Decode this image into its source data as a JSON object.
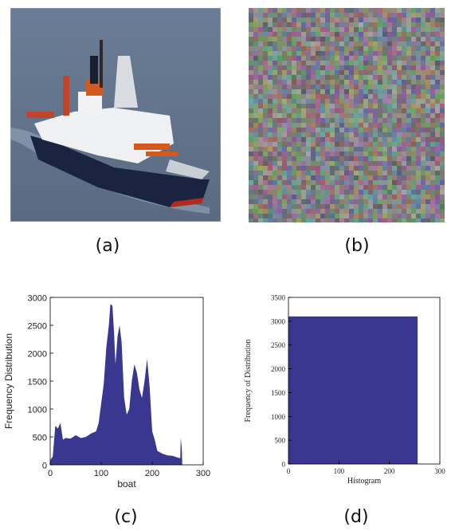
{
  "figure": {
    "captions": {
      "a": "(a)",
      "b": "(b)",
      "c": "(c)",
      "d": "(d)"
    }
  },
  "chart_data": [
    {
      "type": "area",
      "xlabel": "boat",
      "ylabel": "Frequency Distribution",
      "xlim": [
        0,
        300
      ],
      "ylim": [
        0,
        3000
      ],
      "x_ticks": [
        "0",
        "100",
        "200",
        "300"
      ],
      "y_ticks": [
        "0",
        "500",
        "1000",
        "1500",
        "2000",
        "2500",
        "3000"
      ],
      "color": "#3a3790",
      "x": [
        0,
        5,
        10,
        15,
        20,
        25,
        30,
        40,
        50,
        60,
        70,
        80,
        90,
        95,
        100,
        105,
        110,
        115,
        118,
        122,
        125,
        128,
        132,
        136,
        140,
        145,
        150,
        155,
        160,
        165,
        170,
        175,
        180,
        185,
        190,
        195,
        200,
        205,
        210,
        220,
        230,
        240,
        250,
        255,
        256,
        258,
        259
      ],
      "values": [
        80,
        150,
        700,
        650,
        750,
        450,
        480,
        470,
        530,
        480,
        500,
        560,
        600,
        750,
        1100,
        1450,
        2100,
        2500,
        2880,
        2850,
        2400,
        1800,
        2300,
        2500,
        2200,
        1200,
        900,
        1000,
        1500,
        1800,
        1650,
        1350,
        1200,
        1500,
        1900,
        1400,
        600,
        450,
        250,
        200,
        170,
        160,
        130,
        120,
        480,
        300,
        0
      ]
    },
    {
      "type": "area",
      "xlabel": "Histogram",
      "ylabel": "Frequency of Distribution",
      "xlim": [
        0,
        300
      ],
      "ylim": [
        0,
        3500
      ],
      "x_ticks": [
        "0",
        "100",
        "200",
        "300"
      ],
      "y_ticks": [
        "0",
        "500",
        "1000",
        "1500",
        "2000",
        "2500",
        "3000",
        "3500"
      ],
      "color": "#3a3790",
      "x": [
        0,
        256
      ],
      "values": [
        3100,
        3100
      ]
    }
  ]
}
